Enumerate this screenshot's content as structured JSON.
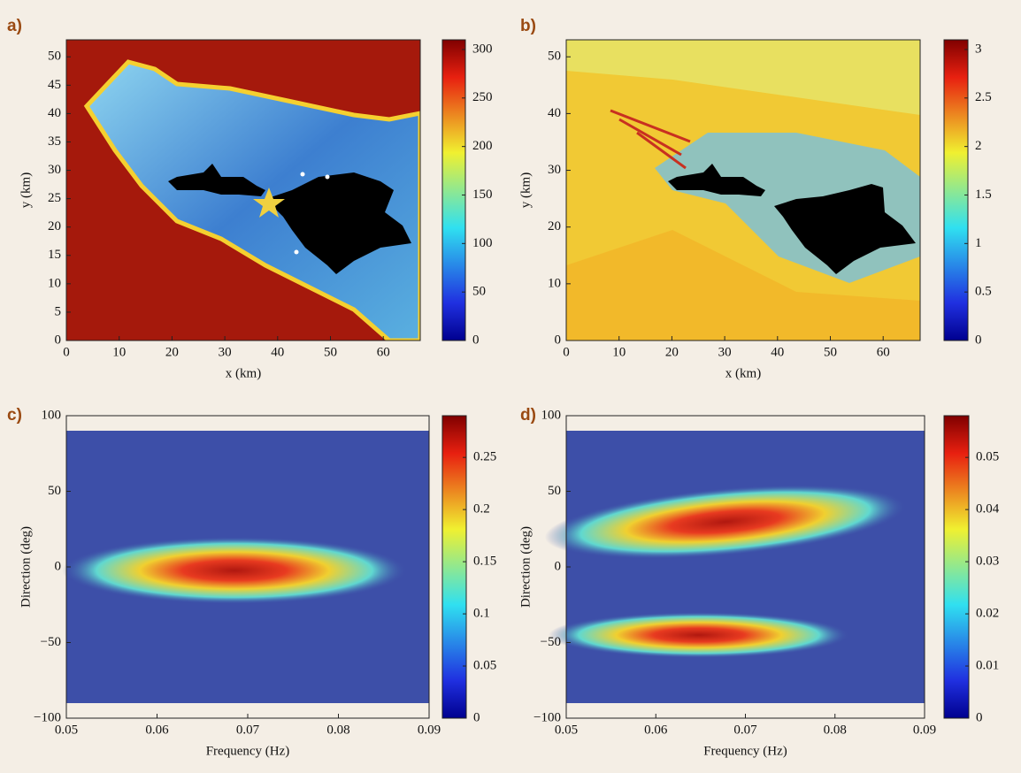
{
  "chart_data": [
    {
      "type": "heatmap",
      "panel_label": "a)",
      "xlabel": "x (km)",
      "ylabel": "y (km)",
      "xlim": [
        0,
        67
      ],
      "xticks": [
        0,
        10,
        20,
        30,
        40,
        50,
        60
      ],
      "ylim": [
        0,
        53
      ],
      "yticks": [
        0,
        5,
        10,
        15,
        20,
        25,
        30,
        35,
        40,
        45,
        50
      ],
      "colormap": "jet",
      "colorbar": {
        "lim": [
          0,
          310
        ],
        "ticks": [
          0,
          50,
          100,
          150,
          200,
          250,
          300
        ]
      }
    },
    {
      "type": "heatmap",
      "panel_label": "b)",
      "xlabel": "x (km)",
      "ylabel": "y (km)",
      "xlim": [
        0,
        67
      ],
      "xticks": [
        0,
        10,
        20,
        30,
        40,
        50,
        60
      ],
      "ylim": [
        0,
        53
      ],
      "yticks": [
        0,
        10,
        20,
        30,
        40,
        50
      ],
      "colormap": "jet",
      "colorbar": {
        "lim": [
          0,
          3.1
        ],
        "ticks": [
          0,
          0.5,
          1,
          1.5,
          2,
          2.5,
          3
        ]
      }
    },
    {
      "type": "heatmap",
      "panel_label": "c)",
      "xlabel": "Frequency (Hz)",
      "ylabel": "Direction (deg)",
      "xlim": [
        0.05,
        0.09
      ],
      "xticks": [
        0.05,
        0.06,
        0.07,
        0.08,
        0.09
      ],
      "ylim": [
        -100,
        100
      ],
      "yticks": [
        {
          "value": -100,
          "label": "−100"
        },
        {
          "value": -50,
          "label": "−50"
        },
        0,
        50,
        100
      ],
      "colormap": "jet",
      "colorbar": {
        "lim": [
          0,
          0.29
        ],
        "ticks": [
          0,
          0.05,
          0.1,
          0.15,
          0.2,
          0.25
        ]
      }
    },
    {
      "type": "heatmap",
      "panel_label": "d)",
      "xlabel": "Frequency (Hz)",
      "ylabel": "Direction (deg)",
      "xlim": [
        0.05,
        0.09
      ],
      "xticks": [
        0.05,
        0.06,
        0.07,
        0.08,
        0.09
      ],
      "ylim": [
        -100,
        100
      ],
      "yticks": [
        {
          "value": -100,
          "label": "−100"
        },
        {
          "value": -50,
          "label": "−50"
        },
        0,
        50,
        100
      ],
      "colormap": "jet",
      "colorbar": {
        "lim": [
          0,
          0.058
        ],
        "ticks": [
          0,
          0.01,
          0.02,
          0.03,
          0.04,
          0.05
        ]
      }
    }
  ]
}
